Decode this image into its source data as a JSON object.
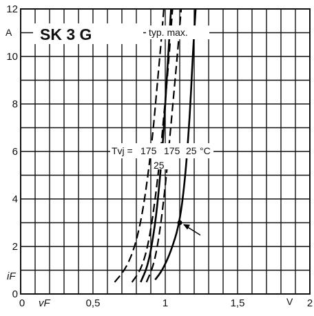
{
  "chart_data": {
    "type": "line",
    "title": "SK 3 G",
    "xlabel": "vF",
    "ylabel": "iF",
    "x_unit": "V",
    "y_unit": "A",
    "xlim": [
      0,
      2
    ],
    "ylim": [
      0,
      12
    ],
    "x_ticks": [
      0,
      0.5,
      1,
      1.5,
      2
    ],
    "x_tick_labels": [
      "0",
      "0,5",
      "1",
      "1,5",
      "2"
    ],
    "y_ticks": [
      0,
      2,
      4,
      6,
      8,
      10,
      12
    ],
    "y_tick_labels": [
      "0",
      "2",
      "4",
      "6",
      "8",
      "10",
      "12"
    ],
    "grid": true,
    "legend": {
      "header": "typ. max.",
      "tvj_label": "Tvj =",
      "temps_row1": "175",
      "temps_row1b": "175",
      "temps_row1c": "25",
      "unit": "°C",
      "temps_row2": "25"
    },
    "series": [
      {
        "line_style": "dashed",
        "points": [
          [
            0.65,
            0.5
          ],
          [
            0.72,
            1.0
          ],
          [
            0.78,
            1.8
          ],
          [
            0.83,
            3.0
          ],
          [
            0.87,
            4.5
          ],
          [
            0.91,
            6.5
          ],
          [
            0.94,
            8.5
          ],
          [
            0.97,
            10.5
          ],
          [
            0.99,
            12
          ]
        ]
      },
      {
        "line_style": "dashed",
        "points": [
          [
            0.77,
            0.5
          ],
          [
            0.83,
            1.0
          ],
          [
            0.88,
            2.0
          ],
          [
            0.92,
            3.5
          ],
          [
            0.96,
            5.5
          ],
          [
            0.99,
            7.5
          ],
          [
            1.02,
            9.5
          ],
          [
            1.05,
            12
          ]
        ]
      },
      {
        "line_style": "solid",
        "points": [
          [
            0.83,
            0.5
          ],
          [
            0.88,
            1.2
          ],
          [
            0.92,
            2.5
          ],
          [
            0.95,
            4.0
          ],
          [
            0.98,
            6.0
          ],
          [
            1.0,
            8.0
          ],
          [
            1.02,
            10.0
          ],
          [
            1.04,
            12
          ]
        ]
      },
      {
        "line_style": "dashed",
        "points": [
          [
            0.87,
            0.5
          ],
          [
            0.92,
            1.2
          ],
          [
            0.96,
            2.5
          ],
          [
            1.0,
            4.5
          ],
          [
            1.03,
            6.5
          ],
          [
            1.06,
            8.5
          ],
          [
            1.09,
            10.5
          ],
          [
            1.11,
            12
          ]
        ]
      },
      {
        "line_style": "solid",
        "points": [
          [
            0.93,
            0.6
          ],
          [
            0.98,
            1.0
          ],
          [
            1.04,
            1.8
          ],
          [
            1.1,
            3.0
          ],
          [
            1.14,
            5.0
          ],
          [
            1.17,
            7.5
          ],
          [
            1.19,
            10.0
          ],
          [
            1.21,
            12
          ]
        ]
      }
    ],
    "annotations": [
      {
        "type": "marker",
        "x": 1.1,
        "y": 3.0,
        "note": "arrow pointing to operating point"
      }
    ]
  }
}
